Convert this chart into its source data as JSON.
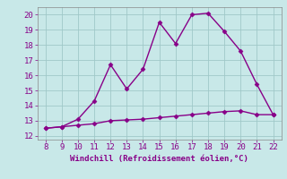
{
  "x": [
    8,
    9,
    10,
    11,
    12,
    13,
    14,
    15,
    16,
    17,
    18,
    19,
    20,
    21,
    22
  ],
  "y_upper": [
    12.5,
    12.6,
    13.1,
    14.3,
    16.7,
    15.1,
    16.4,
    19.5,
    18.1,
    20.0,
    20.1,
    18.9,
    17.6,
    15.4,
    13.4
  ],
  "y_lower": [
    12.5,
    12.6,
    12.7,
    12.8,
    13.0,
    13.05,
    13.1,
    13.2,
    13.3,
    13.4,
    13.5,
    13.6,
    13.65,
    13.4,
    13.4
  ],
  "line_color": "#880088",
  "bg_color": "#c8e8e8",
  "plot_bg_color": "#c8e8e8",
  "grid_color": "#a0c8c8",
  "spine_color": "#888888",
  "xlabel": "Windchill (Refroidissement éolien,°C)",
  "xlim": [
    7.5,
    22.5
  ],
  "ylim": [
    11.75,
    20.5
  ],
  "yticks": [
    12,
    13,
    14,
    15,
    16,
    17,
    18,
    19,
    20
  ],
  "xticks": [
    8,
    9,
    10,
    11,
    12,
    13,
    14,
    15,
    16,
    17,
    18,
    19,
    20,
    21,
    22
  ],
  "tick_color": "#880088",
  "label_color": "#880088",
  "markersize": 2.5,
  "linewidth": 1.0,
  "tick_labelsize": 6.5,
  "xlabel_fontsize": 6.5
}
